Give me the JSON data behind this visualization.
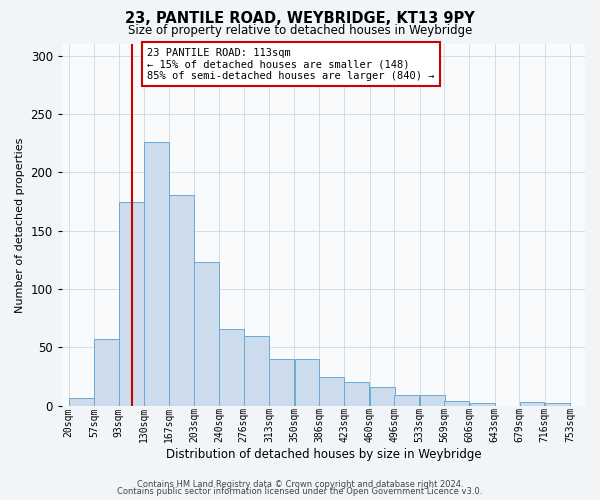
{
  "title1": "23, PANTILE ROAD, WEYBRIDGE, KT13 9PY",
  "title2": "Size of property relative to detached houses in Weybridge",
  "xlabel": "Distribution of detached houses by size in Weybridge",
  "ylabel": "Number of detached properties",
  "bar_left_edges": [
    20,
    57,
    93,
    130,
    167,
    203,
    240,
    276,
    313,
    350,
    386,
    423,
    460,
    496,
    533,
    569,
    606,
    643,
    679,
    716
  ],
  "bar_heights": [
    7,
    57,
    175,
    226,
    181,
    123,
    66,
    60,
    40,
    40,
    25,
    20,
    16,
    9,
    9,
    4,
    2,
    0,
    3,
    2
  ],
  "bin_width": 37,
  "bar_color": "#ccdcec",
  "bar_edge_color": "#6aaad4",
  "vline_x": 113,
  "vline_color": "#cc0000",
  "annotation_line1": "23 PANTILE ROAD: 113sqm",
  "annotation_line2": "← 15% of detached houses are smaller (148)",
  "annotation_line3": "85% of semi-detached houses are larger (840) →",
  "annotation_box_color": "#ffffff",
  "annotation_box_edge_color": "#cc0000",
  "xtick_labels": [
    "20sqm",
    "57sqm",
    "93sqm",
    "130sqm",
    "167sqm",
    "203sqm",
    "240sqm",
    "276sqm",
    "313sqm",
    "350sqm",
    "386sqm",
    "423sqm",
    "460sqm",
    "496sqm",
    "533sqm",
    "569sqm",
    "606sqm",
    "643sqm",
    "679sqm",
    "716sqm",
    "753sqm"
  ],
  "xtick_positions": [
    20,
    57,
    93,
    130,
    167,
    203,
    240,
    276,
    313,
    350,
    386,
    423,
    460,
    496,
    533,
    569,
    606,
    643,
    679,
    716,
    753
  ],
  "ytick_values": [
    0,
    50,
    100,
    150,
    200,
    250,
    300
  ],
  "ylim": [
    0,
    310
  ],
  "xlim": [
    10,
    775
  ],
  "footer1": "Contains HM Land Registry data © Crown copyright and database right 2024.",
  "footer2": "Contains public sector information licensed under the Open Government Licence v3.0.",
  "background_color": "#f2f5f8",
  "plot_background_color": "#f8fafb",
  "grid_color": "#d0d8e0",
  "title1_fontsize": 10.5,
  "title2_fontsize": 8.5,
  "ylabel_fontsize": 8,
  "xlabel_fontsize": 8.5,
  "ytick_fontsize": 8.5,
  "xtick_fontsize": 7,
  "footer_fontsize": 6,
  "annotation_fontsize": 7.5
}
